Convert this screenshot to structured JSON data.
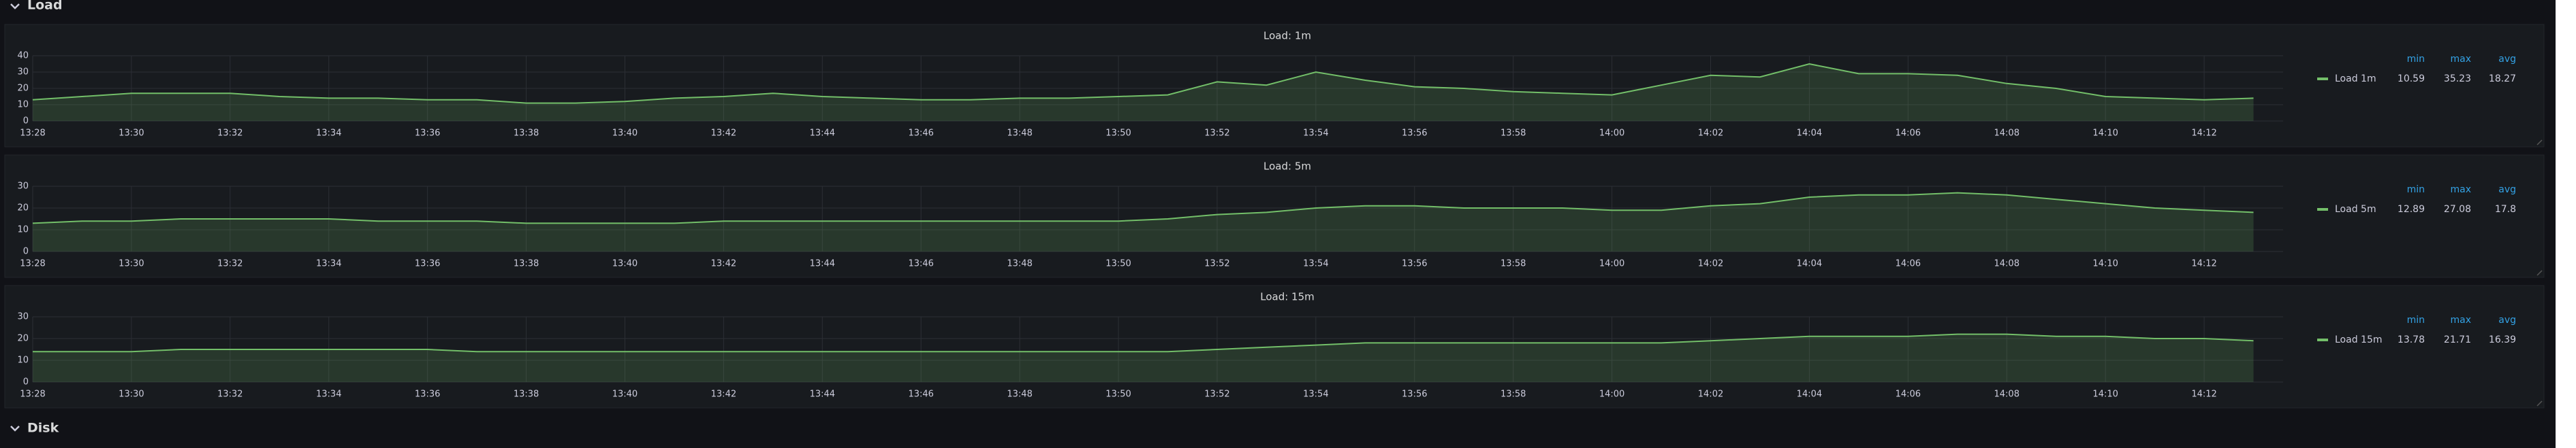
{
  "rows": [
    "Load",
    "Disk"
  ],
  "chart_data": [
    {
      "type": "line",
      "title": "Load: 1m",
      "categories": [
        "13:28",
        null,
        "13:30",
        null,
        "13:32",
        null,
        "13:34",
        null,
        "13:36",
        null,
        "13:38",
        null,
        "13:40",
        null,
        "13:42",
        null,
        "13:44",
        null,
        "13:46",
        null,
        "13:48",
        null,
        "13:50",
        null,
        "13:52",
        null,
        "13:54",
        null,
        "13:56",
        null,
        "13:58",
        null,
        "14:00",
        null,
        "14:02",
        null,
        "14:04",
        null,
        "14:06",
        null,
        "14:08",
        null,
        "14:10",
        null,
        "14:12",
        null
      ],
      "series": [
        {
          "name": "Load 1m",
          "color": "#73bf69",
          "values": [
            13,
            15,
            17,
            17,
            17,
            15,
            14,
            14,
            13,
            13,
            11,
            11,
            12,
            14,
            15,
            17,
            15,
            14,
            13,
            13,
            14,
            14,
            15,
            16,
            24,
            22,
            30,
            25,
            21,
            20,
            18,
            17,
            16,
            22,
            28,
            27,
            35,
            29,
            29,
            28,
            23,
            20,
            15,
            14,
            13,
            14
          ]
        }
      ],
      "ylim": [
        0,
        40
      ],
      "yticks": [
        0,
        10,
        20,
        30,
        40
      ],
      "grid": true,
      "legend": {
        "columns": [
          "min",
          "max",
          "avg"
        ],
        "values": [
          [
            10.59,
            35.23,
            18.27
          ]
        ]
      }
    },
    {
      "type": "line",
      "title": "Load: 5m",
      "categories": [
        "13:28",
        null,
        "13:30",
        null,
        "13:32",
        null,
        "13:34",
        null,
        "13:36",
        null,
        "13:38",
        null,
        "13:40",
        null,
        "13:42",
        null,
        "13:44",
        null,
        "13:46",
        null,
        "13:48",
        null,
        "13:50",
        null,
        "13:52",
        null,
        "13:54",
        null,
        "13:56",
        null,
        "13:58",
        null,
        "14:00",
        null,
        "14:02",
        null,
        "14:04",
        null,
        "14:06",
        null,
        "14:08",
        null,
        "14:10",
        null,
        "14:12",
        null
      ],
      "series": [
        {
          "name": "Load 5m",
          "color": "#73bf69",
          "values": [
            13,
            14,
            14,
            15,
            15,
            15,
            15,
            14,
            14,
            14,
            13,
            13,
            13,
            13,
            14,
            14,
            14,
            14,
            14,
            14,
            14,
            14,
            14,
            15,
            17,
            18,
            20,
            21,
            21,
            20,
            20,
            20,
            19,
            19,
            21,
            22,
            25,
            26,
            26,
            27,
            26,
            24,
            22,
            20,
            19,
            18
          ]
        }
      ],
      "ylim": [
        0,
        30
      ],
      "yticks": [
        0,
        10,
        20,
        30
      ],
      "grid": true,
      "legend": {
        "columns": [
          "min",
          "max",
          "avg"
        ],
        "values": [
          [
            12.89,
            27.08,
            17.8
          ]
        ]
      }
    },
    {
      "type": "line",
      "title": "Load: 15m",
      "categories": [
        "13:28",
        null,
        "13:30",
        null,
        "13:32",
        null,
        "13:34",
        null,
        "13:36",
        null,
        "13:38",
        null,
        "13:40",
        null,
        "13:42",
        null,
        "13:44",
        null,
        "13:46",
        null,
        "13:48",
        null,
        "13:50",
        null,
        "13:52",
        null,
        "13:54",
        null,
        "13:56",
        null,
        "13:58",
        null,
        "14:00",
        null,
        "14:02",
        null,
        "14:04",
        null,
        "14:06",
        null,
        "14:08",
        null,
        "14:10",
        null,
        "14:12",
        null
      ],
      "series": [
        {
          "name": "Load 15m",
          "color": "#73bf69",
          "values": [
            14,
            14,
            14,
            15,
            15,
            15,
            15,
            15,
            15,
            14,
            14,
            14,
            14,
            14,
            14,
            14,
            14,
            14,
            14,
            14,
            14,
            14,
            14,
            14,
            15,
            16,
            17,
            18,
            18,
            18,
            18,
            18,
            18,
            18,
            19,
            20,
            21,
            21,
            21,
            22,
            22,
            21,
            21,
            20,
            20,
            19
          ]
        }
      ],
      "ylim": [
        0,
        30
      ],
      "yticks": [
        0,
        10,
        20,
        30
      ],
      "grid": true,
      "legend": {
        "columns": [
          "min",
          "max",
          "avg"
        ],
        "values": [
          [
            13.78,
            21.71,
            16.39
          ]
        ]
      }
    }
  ]
}
